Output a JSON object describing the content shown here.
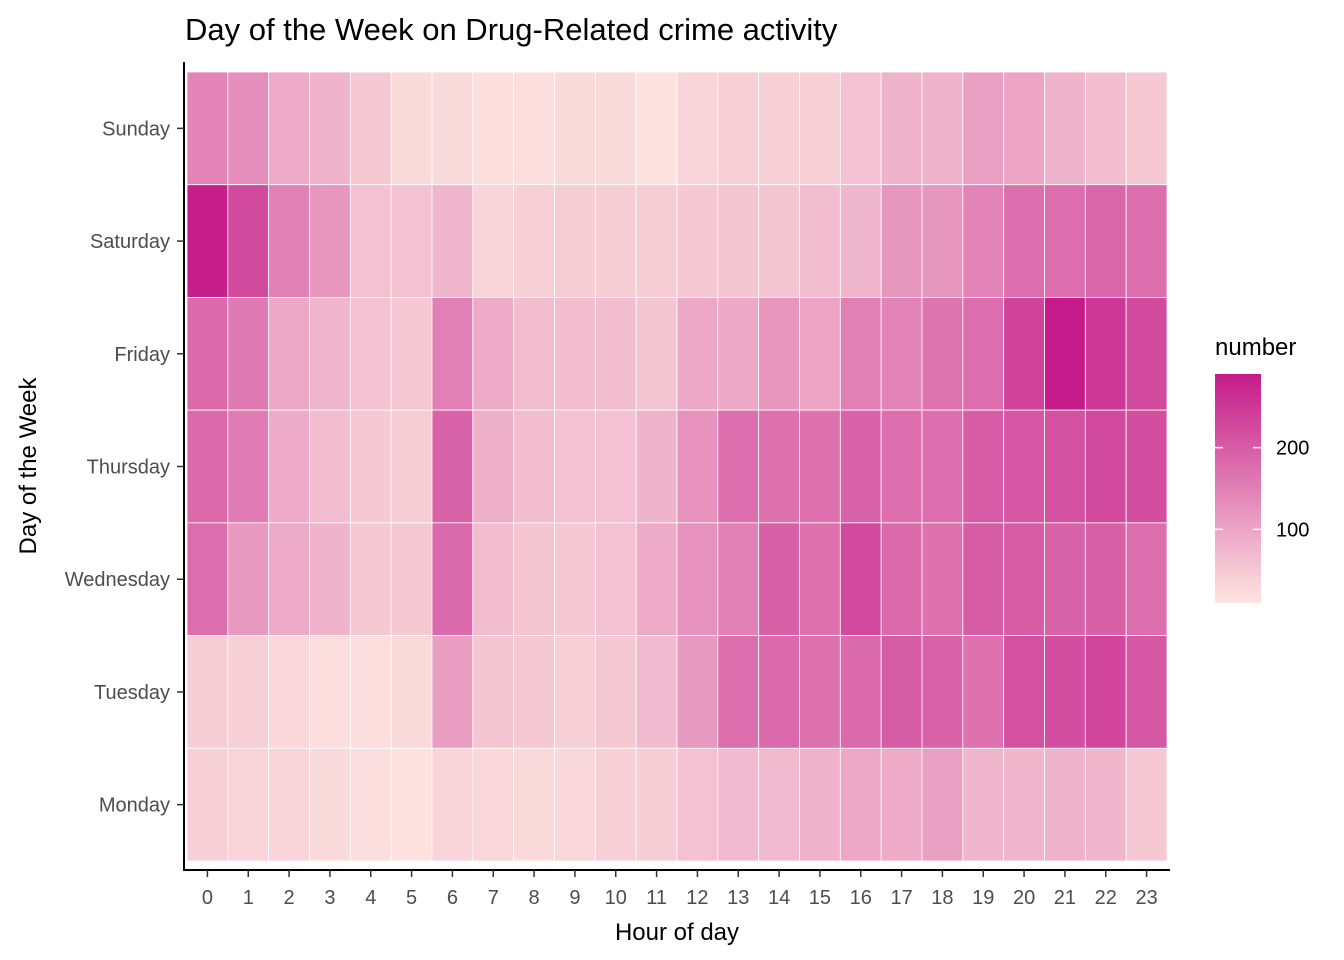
{
  "chart_data": {
    "type": "heatmap",
    "title": "Day of the Week on Drug-Related crime activity",
    "xlabel": "Hour of day",
    "ylabel": "Day of the Week",
    "x": [
      "0",
      "1",
      "2",
      "3",
      "4",
      "5",
      "6",
      "7",
      "8",
      "9",
      "10",
      "11",
      "12",
      "13",
      "14",
      "15",
      "16",
      "17",
      "18",
      "19",
      "20",
      "21",
      "22",
      "23"
    ],
    "y": [
      "Sunday",
      "Saturday",
      "Friday",
      "Thursday",
      "Wednesday",
      "Tuesday",
      "Monday"
    ],
    "values": [
      [
        145,
        130,
        90,
        80,
        50,
        25,
        25,
        20,
        20,
        25,
        25,
        15,
        35,
        40,
        40,
        40,
        60,
        80,
        80,
        105,
        100,
        80,
        65,
        50
      ],
      [
        285,
        225,
        150,
        120,
        60,
        60,
        75,
        35,
        40,
        45,
        45,
        45,
        50,
        55,
        55,
        65,
        75,
        120,
        120,
        145,
        175,
        175,
        185,
        175
      ],
      [
        180,
        160,
        95,
        75,
        60,
        50,
        150,
        90,
        65,
        65,
        65,
        55,
        95,
        95,
        120,
        100,
        150,
        145,
        165,
        175,
        235,
        290,
        250,
        225
      ],
      [
        180,
        155,
        90,
        65,
        50,
        45,
        190,
        85,
        65,
        60,
        60,
        80,
        125,
        175,
        170,
        170,
        190,
        175,
        175,
        200,
        205,
        215,
        225,
        220
      ],
      [
        175,
        115,
        90,
        80,
        50,
        50,
        180,
        65,
        55,
        50,
        60,
        90,
        125,
        150,
        195,
        170,
        225,
        180,
        170,
        200,
        200,
        190,
        195,
        175
      ],
      [
        45,
        40,
        30,
        20,
        20,
        25,
        110,
        55,
        50,
        40,
        50,
        70,
        115,
        175,
        180,
        170,
        180,
        200,
        190,
        170,
        215,
        220,
        230,
        205
      ],
      [
        40,
        35,
        35,
        25,
        20,
        15,
        35,
        30,
        25,
        30,
        40,
        45,
        60,
        70,
        70,
        80,
        95,
        90,
        105,
        75,
        75,
        80,
        75,
        50
      ]
    ],
    "color_scale": {
      "low": "#fde5e0",
      "high": "#c51b8a",
      "domain": [
        10,
        290
      ]
    },
    "legend": {
      "title": "number",
      "ticks": [
        100,
        200
      ],
      "placement": "right"
    },
    "grid": false
  }
}
